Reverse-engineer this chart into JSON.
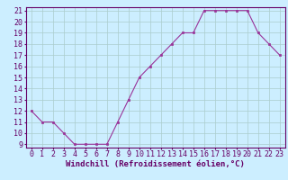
{
  "x": [
    0,
    1,
    2,
    3,
    4,
    5,
    6,
    7,
    8,
    9,
    10,
    11,
    12,
    13,
    14,
    15,
    16,
    17,
    18,
    19,
    20,
    21,
    22,
    23
  ],
  "y": [
    12,
    11,
    11,
    10,
    9,
    9,
    9,
    9,
    11,
    13,
    15,
    16,
    17,
    18,
    19,
    19,
    21,
    21,
    21,
    21,
    21,
    19,
    18,
    17
  ],
  "line_color": "#993399",
  "marker": "s",
  "marker_size": 2.0,
  "bg_color": "#cceeff",
  "grid_color": "#aacccc",
  "xlabel": "Windchill (Refroidissement éolien,°C)",
  "xlabel_fontsize": 6.5,
  "tick_fontsize": 6.0,
  "ylim_min": 9,
  "ylim_max": 21,
  "xlim_min": -0.5,
  "xlim_max": 23.5,
  "yticks": [
    9,
    10,
    11,
    12,
    13,
    14,
    15,
    16,
    17,
    18,
    19,
    20,
    21
  ],
  "xticks": [
    0,
    1,
    2,
    3,
    4,
    5,
    6,
    7,
    8,
    9,
    10,
    11,
    12,
    13,
    14,
    15,
    16,
    17,
    18,
    19,
    20,
    21,
    22,
    23
  ]
}
